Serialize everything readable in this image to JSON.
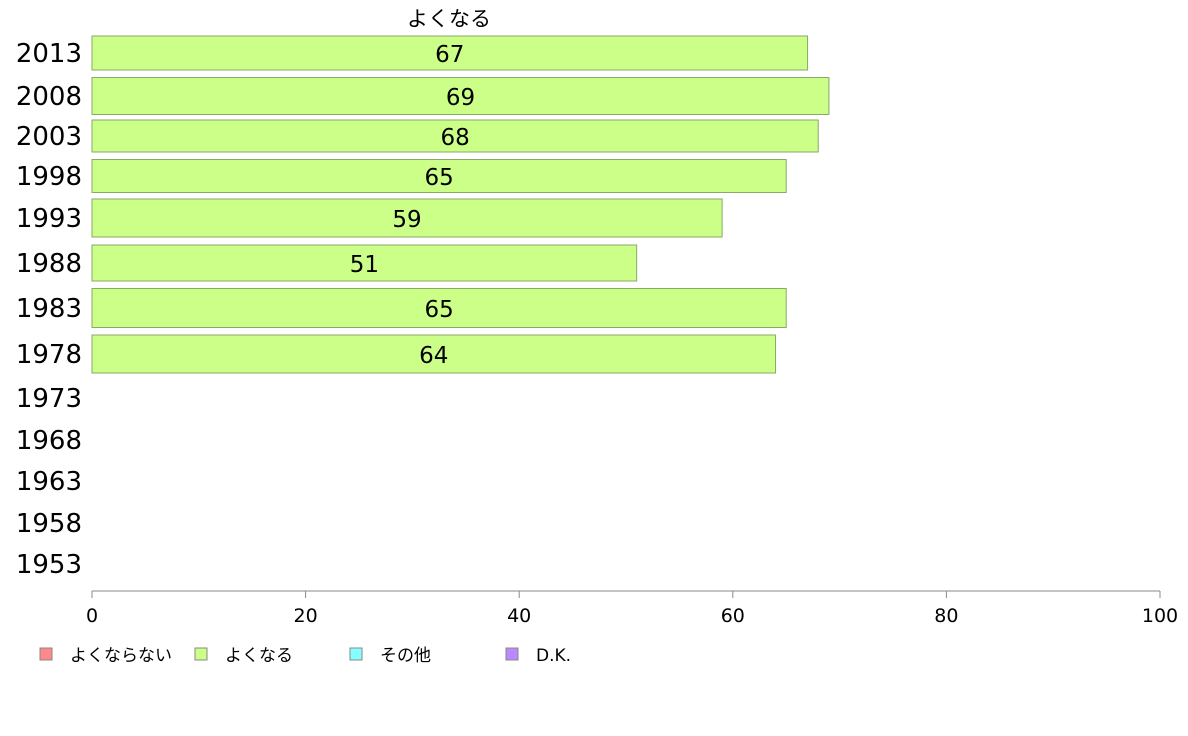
{
  "chart_data": {
    "type": "bar",
    "orientation": "horizontal",
    "series_title": "よくなる",
    "categories": [
      "2013",
      "2008",
      "2003",
      "1998",
      "1993",
      "1988",
      "1983",
      "1978",
      "1973",
      "1968",
      "1963",
      "1958",
      "1953"
    ],
    "series": [
      {
        "name": "よくなる",
        "values": [
          67,
          69,
          68,
          65,
          59,
          51,
          65,
          64,
          null,
          null,
          null,
          null,
          null
        ],
        "labels": [
          "67",
          "69",
          "68",
          "65",
          "59",
          "51",
          "65",
          "64",
          "",
          "",
          "",
          "",
          ""
        ],
        "color": "#ccff88"
      }
    ],
    "xlim": [
      0,
      100
    ],
    "xticks": [
      "0",
      "20",
      "40",
      "60",
      "80",
      "100"
    ],
    "grid": false,
    "legend": {
      "position": "bottom-left",
      "items": [
        {
          "label": "よくならない",
          "color": "#ff8888"
        },
        {
          "label": "よくなる",
          "color": "#ccff88"
        },
        {
          "label": "その他",
          "color": "#88ffff"
        },
        {
          "label": "D.K.",
          "color": "#bb88ff"
        }
      ]
    },
    "bar_border_color": "#88aa66",
    "axis_color": "#888888"
  }
}
